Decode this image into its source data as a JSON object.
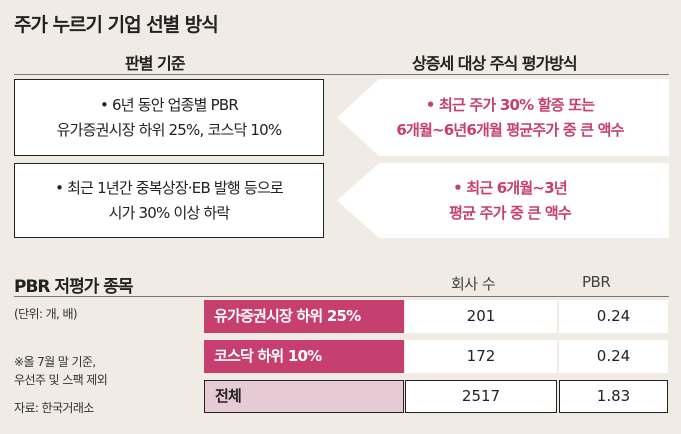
{
  "title": "주가 누르기 기업 선별 방식",
  "headers": {
    "criteria": "판별 기준",
    "valuation": "상증세 대상 주식 평가방식"
  },
  "rows": [
    {
      "criteria": [
        "• 6년 동안 업종별 PBR",
        "유가증권시장 하위 25%, 코스닥 10%"
      ],
      "valuation": [
        "• 최근 주가 30% 할증 또는",
        "6개월~6년6개월 평균주가 중 큰 액수"
      ]
    },
    {
      "criteria": [
        "• 최근 1년간 중복상장·EB 발행 등으로",
        "시가 30% 이상 하락"
      ],
      "valuation": [
        "• 최근 6개월~3년",
        "평균 주가 중 큰 액수"
      ]
    }
  ],
  "table": {
    "title": "PBR 저평가 종목",
    "unit": "(단위: 개, 배)",
    "col_count": "회사 수",
    "col_pbr": "PBR",
    "rows": [
      {
        "label": "유가증권시장 하위 25%",
        "count": "201",
        "pbr": "0.24"
      },
      {
        "label": "코스닥 하위 10%",
        "count": "172",
        "pbr": "0.24"
      },
      {
        "label": "전체",
        "count": "2517",
        "pbr": "1.83"
      }
    ],
    "notes": [
      "※올 7월 말 기준,",
      "우선주 및 스팩 제외"
    ],
    "source": "자료: 한국거래소"
  },
  "colors": {
    "background": "#f0ebe4",
    "accent": "#c73f6e",
    "arrow_fill": "#ffffff",
    "total_fill": "#e6cbd4"
  }
}
